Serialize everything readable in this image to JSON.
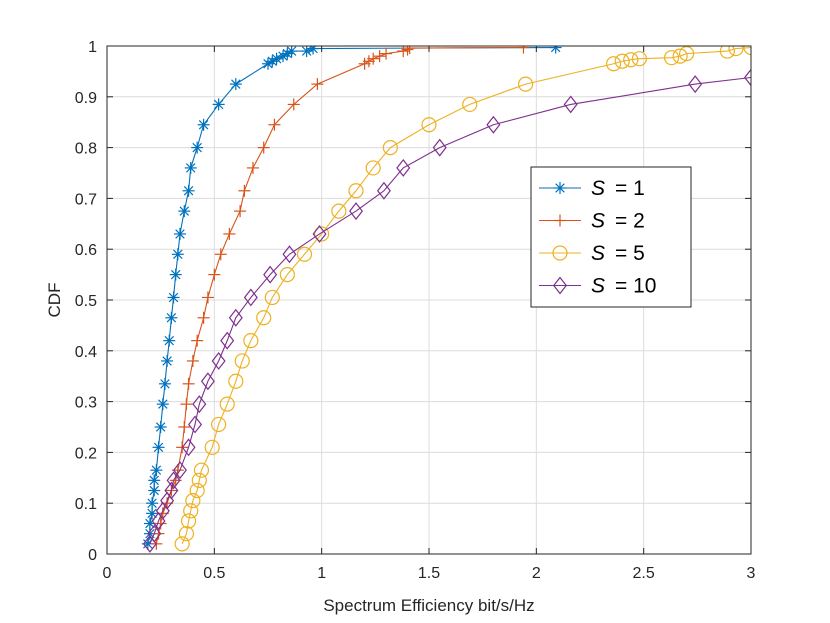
{
  "chart_data": {
    "type": "line",
    "title": "",
    "xlabel": "Spectrum Efficiency bit/s/Hz",
    "ylabel": "CDF",
    "xlim": [
      0,
      3
    ],
    "ylim": [
      0,
      1
    ],
    "x_ticks": [
      0,
      0.5,
      1,
      1.5,
      2,
      2.5,
      3
    ],
    "x_tick_labels": [
      "0",
      "0.5",
      "1",
      "1.5",
      "2",
      "2.5",
      "3"
    ],
    "y_ticks": [
      0,
      0.1,
      0.2,
      0.3,
      0.4,
      0.5,
      0.6,
      0.7,
      0.8,
      0.9,
      1
    ],
    "y_tick_labels": [
      "0",
      "0.1",
      "0.2",
      "0.3",
      "0.4",
      "0.5",
      "0.6",
      "0.7",
      "0.8",
      "0.9",
      "1"
    ],
    "grid": true,
    "legend_position": "right",
    "series": [
      {
        "name": "S = 1",
        "legend_symbol": "S",
        "legend_value": "= 1",
        "color": "#0072BD",
        "marker": "asterisk",
        "points": [
          [
            0.19,
            0.02
          ],
          [
            0.2,
            0.04
          ],
          [
            0.2,
            0.06
          ],
          [
            0.21,
            0.08
          ],
          [
            0.21,
            0.1
          ],
          [
            0.22,
            0.125
          ],
          [
            0.22,
            0.145
          ],
          [
            0.23,
            0.165
          ],
          [
            0.24,
            0.21
          ],
          [
            0.25,
            0.25
          ],
          [
            0.26,
            0.295
          ],
          [
            0.27,
            0.335
          ],
          [
            0.28,
            0.38
          ],
          [
            0.29,
            0.42
          ],
          [
            0.3,
            0.465
          ],
          [
            0.31,
            0.505
          ],
          [
            0.32,
            0.55
          ],
          [
            0.33,
            0.59
          ],
          [
            0.34,
            0.63
          ],
          [
            0.36,
            0.675
          ],
          [
            0.38,
            0.715
          ],
          [
            0.39,
            0.76
          ],
          [
            0.42,
            0.8
          ],
          [
            0.45,
            0.845
          ],
          [
            0.52,
            0.885
          ],
          [
            0.6,
            0.925
          ],
          [
            0.75,
            0.965
          ],
          [
            0.77,
            0.97
          ],
          [
            0.79,
            0.975
          ],
          [
            0.82,
            0.98
          ],
          [
            0.84,
            0.985
          ],
          [
            0.86,
            0.99
          ],
          [
            0.93,
            0.99
          ],
          [
            0.96,
            0.995
          ],
          [
            2.09,
            0.997
          ]
        ]
      },
      {
        "name": "S = 2",
        "legend_symbol": "S",
        "legend_value": "= 2",
        "color": "#D95319",
        "marker": "plus",
        "points": [
          [
            0.23,
            0.02
          ],
          [
            0.24,
            0.04
          ],
          [
            0.25,
            0.06
          ],
          [
            0.26,
            0.08
          ],
          [
            0.28,
            0.1
          ],
          [
            0.3,
            0.125
          ],
          [
            0.32,
            0.145
          ],
          [
            0.33,
            0.165
          ],
          [
            0.35,
            0.21
          ],
          [
            0.36,
            0.25
          ],
          [
            0.37,
            0.295
          ],
          [
            0.38,
            0.335
          ],
          [
            0.4,
            0.38
          ],
          [
            0.42,
            0.42
          ],
          [
            0.45,
            0.465
          ],
          [
            0.47,
            0.505
          ],
          [
            0.5,
            0.55
          ],
          [
            0.53,
            0.59
          ],
          [
            0.57,
            0.63
          ],
          [
            0.62,
            0.675
          ],
          [
            0.64,
            0.715
          ],
          [
            0.68,
            0.76
          ],
          [
            0.73,
            0.8
          ],
          [
            0.78,
            0.845
          ],
          [
            0.87,
            0.885
          ],
          [
            0.98,
            0.925
          ],
          [
            1.2,
            0.965
          ],
          [
            1.22,
            0.97
          ],
          [
            1.24,
            0.975
          ],
          [
            1.27,
            0.98
          ],
          [
            1.3,
            0.985
          ],
          [
            1.38,
            0.99
          ],
          [
            1.4,
            0.993
          ],
          [
            1.41,
            0.996
          ],
          [
            1.94,
            0.997
          ]
        ]
      },
      {
        "name": "S = 5",
        "legend_symbol": "S",
        "legend_value": "= 5",
        "color": "#EDB120",
        "marker": "circle",
        "points": [
          [
            0.35,
            0.02
          ],
          [
            0.37,
            0.04
          ],
          [
            0.38,
            0.065
          ],
          [
            0.39,
            0.085
          ],
          [
            0.4,
            0.105
          ],
          [
            0.42,
            0.125
          ],
          [
            0.43,
            0.145
          ],
          [
            0.44,
            0.165
          ],
          [
            0.49,
            0.21
          ],
          [
            0.52,
            0.255
          ],
          [
            0.56,
            0.295
          ],
          [
            0.6,
            0.34
          ],
          [
            0.63,
            0.38
          ],
          [
            0.67,
            0.42
          ],
          [
            0.73,
            0.465
          ],
          [
            0.77,
            0.505
          ],
          [
            0.84,
            0.55
          ],
          [
            0.92,
            0.59
          ],
          [
            1.0,
            0.63
          ],
          [
            1.08,
            0.675
          ],
          [
            1.16,
            0.715
          ],
          [
            1.24,
            0.76
          ],
          [
            1.32,
            0.8
          ],
          [
            1.5,
            0.845
          ],
          [
            1.69,
            0.885
          ],
          [
            1.95,
            0.925
          ],
          [
            2.36,
            0.965
          ],
          [
            2.4,
            0.97
          ],
          [
            2.44,
            0.973
          ],
          [
            2.48,
            0.975
          ],
          [
            2.63,
            0.977
          ],
          [
            2.67,
            0.98
          ],
          [
            2.7,
            0.985
          ],
          [
            2.89,
            0.99
          ],
          [
            2.93,
            0.995
          ],
          [
            3.0,
            0.997
          ]
        ]
      },
      {
        "name": "S = 10",
        "legend_symbol": "S",
        "legend_value": "= 10",
        "color": "#7E2F8E",
        "marker": "diamond",
        "points": [
          [
            0.2,
            0.02
          ],
          [
            0.22,
            0.04
          ],
          [
            0.24,
            0.065
          ],
          [
            0.26,
            0.085
          ],
          [
            0.28,
            0.105
          ],
          [
            0.3,
            0.125
          ],
          [
            0.31,
            0.145
          ],
          [
            0.34,
            0.165
          ],
          [
            0.38,
            0.21
          ],
          [
            0.41,
            0.255
          ],
          [
            0.43,
            0.295
          ],
          [
            0.47,
            0.34
          ],
          [
            0.52,
            0.38
          ],
          [
            0.56,
            0.42
          ],
          [
            0.6,
            0.465
          ],
          [
            0.67,
            0.505
          ],
          [
            0.76,
            0.55
          ],
          [
            0.85,
            0.59
          ],
          [
            0.99,
            0.63
          ],
          [
            1.16,
            0.675
          ],
          [
            1.29,
            0.715
          ],
          [
            1.38,
            0.76
          ],
          [
            1.55,
            0.8
          ],
          [
            1.8,
            0.845
          ],
          [
            2.16,
            0.885
          ],
          [
            2.74,
            0.925
          ],
          [
            3.0,
            0.938
          ]
        ]
      }
    ]
  }
}
